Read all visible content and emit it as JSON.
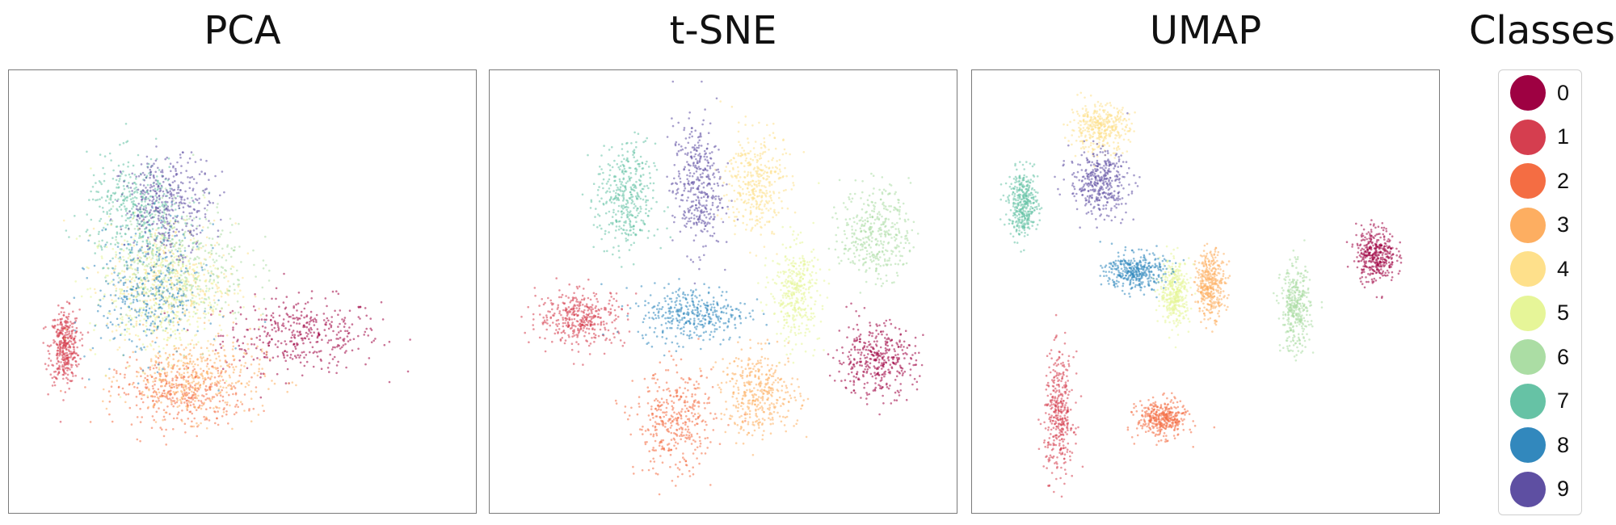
{
  "legend": {
    "title": "Classes",
    "items": [
      {
        "label": "0",
        "color": "#9e0142"
      },
      {
        "label": "1",
        "color": "#d53e4f"
      },
      {
        "label": "2",
        "color": "#f46d43"
      },
      {
        "label": "3",
        "color": "#fdae61"
      },
      {
        "label": "4",
        "color": "#fee08b"
      },
      {
        "label": "5",
        "color": "#e6f598"
      },
      {
        "label": "6",
        "color": "#abdda4"
      },
      {
        "label": "7",
        "color": "#66c2a5"
      },
      {
        "label": "8",
        "color": "#3288bd"
      },
      {
        "label": "9",
        "color": "#5e4fa2"
      }
    ]
  },
  "chart_data": [
    {
      "type": "scatter",
      "title": "PCA",
      "xlabel": "",
      "ylabel": "",
      "xlim": [
        0,
        100
      ],
      "ylim": [
        0,
        100
      ],
      "axes_visible": false,
      "grid": false,
      "series": [
        {
          "name": "0",
          "center": [
            63,
            40
          ],
          "spread": [
            16,
            8
          ]
        },
        {
          "name": "1",
          "center": [
            10,
            37
          ],
          "spread": [
            3,
            8
          ]
        },
        {
          "name": "2",
          "center": [
            36,
            26
          ],
          "spread": [
            13,
            7
          ]
        },
        {
          "name": "3",
          "center": [
            39,
            30
          ],
          "spread": [
            14,
            9
          ]
        },
        {
          "name": "4",
          "center": [
            34,
            52
          ],
          "spread": [
            13,
            13
          ]
        },
        {
          "name": "5",
          "center": [
            30,
            50
          ],
          "spread": [
            13,
            15
          ]
        },
        {
          "name": "6",
          "center": [
            36,
            57
          ],
          "spread": [
            14,
            13
          ]
        },
        {
          "name": "7",
          "center": [
            26,
            70
          ],
          "spread": [
            10,
            11
          ]
        },
        {
          "name": "8",
          "center": [
            29,
            50
          ],
          "spread": [
            11,
            14
          ]
        },
        {
          "name": "9",
          "center": [
            33,
            71
          ],
          "spread": [
            9,
            10
          ]
        }
      ]
    },
    {
      "type": "scatter",
      "title": "t-SNE",
      "xlabel": "",
      "ylabel": "",
      "xlim": [
        0,
        100
      ],
      "ylim": [
        0,
        100
      ],
      "axes_visible": false,
      "grid": false,
      "series": [
        {
          "name": "0",
          "center": [
            84,
            34
          ],
          "spread": [
            8,
            8
          ]
        },
        {
          "name": "1",
          "center": [
            18,
            44
          ],
          "spread": [
            9,
            6
          ]
        },
        {
          "name": "2",
          "center": [
            39,
            19
          ],
          "spread": [
            8,
            11
          ]
        },
        {
          "name": "3",
          "center": [
            58,
            26
          ],
          "spread": [
            8,
            9
          ]
        },
        {
          "name": "4",
          "center": [
            57,
            76
          ],
          "spread": [
            6,
            11
          ]
        },
        {
          "name": "5",
          "center": [
            66,
            50
          ],
          "spread": [
            5,
            11
          ]
        },
        {
          "name": "6",
          "center": [
            84,
            64
          ],
          "spread": [
            7,
            10
          ]
        },
        {
          "name": "7",
          "center": [
            28,
            72
          ],
          "spread": [
            6,
            12
          ]
        },
        {
          "name": "8",
          "center": [
            43,
            45
          ],
          "spread": [
            11,
            6
          ]
        },
        {
          "name": "9",
          "center": [
            44,
            75
          ],
          "spread": [
            5,
            14
          ]
        }
      ]
    },
    {
      "type": "scatter",
      "title": "UMAP",
      "xlabel": "",
      "ylabel": "",
      "xlim": [
        0,
        100
      ],
      "ylim": [
        0,
        100
      ],
      "axes_visible": false,
      "grid": false,
      "series": [
        {
          "name": "0",
          "center": [
            88,
            59
          ],
          "spread": [
            4,
            6
          ]
        },
        {
          "name": "1",
          "center": [
            17,
            21
          ],
          "spread": [
            3,
            13
          ]
        },
        {
          "name": "2",
          "center": [
            40,
            20
          ],
          "spread": [
            5,
            4
          ]
        },
        {
          "name": "3",
          "center": [
            51,
            52
          ],
          "spread": [
            3,
            7
          ]
        },
        {
          "name": "4",
          "center": [
            26,
            89
          ],
          "spread": [
            6,
            5
          ]
        },
        {
          "name": "5",
          "center": [
            43,
            50
          ],
          "spread": [
            3,
            7
          ]
        },
        {
          "name": "6",
          "center": [
            70,
            46
          ],
          "spread": [
            3,
            9
          ]
        },
        {
          "name": "7",
          "center": [
            9,
            71
          ],
          "spread": [
            3,
            7
          ]
        },
        {
          "name": "8",
          "center": [
            34,
            55
          ],
          "spread": [
            6,
            4
          ]
        },
        {
          "name": "9",
          "center": [
            26,
            76
          ],
          "spread": [
            6,
            7
          ]
        }
      ]
    }
  ]
}
